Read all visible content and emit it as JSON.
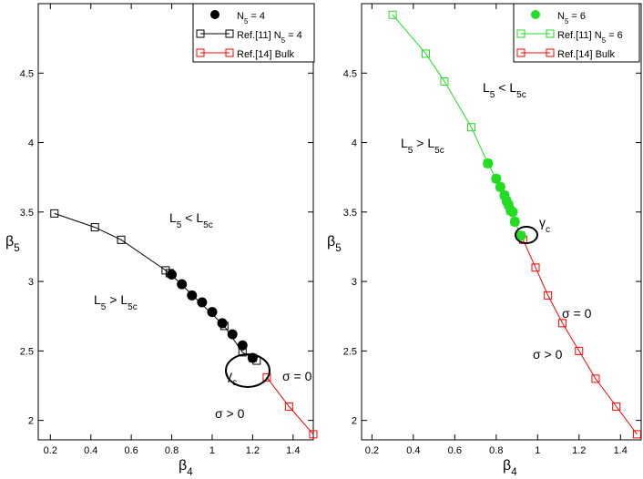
{
  "chart_data": [
    {
      "type": "scatter",
      "x_label": [
        "β",
        "4"
      ],
      "y_label": [
        "β",
        "5"
      ],
      "xlim": [
        0.14,
        1.5
      ],
      "ylim": [
        1.86,
        5.0
      ],
      "xticks": [
        0.2,
        0.4,
        0.6,
        0.8,
        1,
        1.2,
        1.4
      ],
      "yticks": [
        2,
        2.5,
        3,
        3.5,
        4,
        4.5
      ],
      "legend": "upper right",
      "series": [
        {
          "name": [
            "N",
            "5",
            " = 4"
          ],
          "color": "#000000",
          "marker": "circle",
          "line": false,
          "x": [
            0.8,
            0.85,
            0.9,
            0.95,
            1.0,
            1.05,
            1.1,
            1.15,
            1.2
          ],
          "values": [
            3.05,
            2.98,
            2.9,
            2.85,
            2.78,
            2.7,
            2.62,
            2.54,
            2.45
          ]
        },
        {
          "name": [
            "Ref.[11] N",
            "5",
            " = 4"
          ],
          "color": "#000000",
          "marker": "square",
          "line": true,
          "x": [
            0.22,
            0.42,
            0.55,
            0.77,
            0.79,
            1.06,
            1.15,
            1.2,
            1.22
          ],
          "values": [
            3.49,
            3.39,
            3.3,
            3.08,
            3.06,
            2.68,
            2.49,
            2.45,
            2.43
          ]
        },
        {
          "name": [
            "Ref.[14] Bulk"
          ],
          "color": "#ff0000",
          "marker": "square",
          "line": true,
          "x": [
            1.27,
            1.38,
            1.5
          ],
          "values": [
            2.31,
            2.1,
            1.9
          ]
        }
      ],
      "annotations": [
        [
          "L",
          "5",
          " < L",
          "5c"
        ],
        [
          "L",
          "5",
          " > L",
          "5c"
        ],
        [
          "γ",
          "c"
        ],
        [
          "σ = 0"
        ],
        [
          "σ > 0"
        ]
      ]
    },
    {
      "type": "scatter",
      "x_label": [
        "β",
        "4"
      ],
      "y_label": [
        "β",
        "5"
      ],
      "xlim": [
        0.15,
        1.5
      ],
      "ylim": [
        1.86,
        5.0
      ],
      "xticks": [
        0.2,
        0.4,
        0.6,
        0.8,
        1,
        1.2,
        1.4
      ],
      "yticks": [
        2,
        2.5,
        3,
        3.5,
        4,
        4.5
      ],
      "legend": "upper right",
      "series": [
        {
          "name": [
            "N",
            "5",
            " = 6"
          ],
          "color": "#22dd22",
          "marker": "circle",
          "line": false,
          "x": [
            0.76,
            0.8,
            0.82,
            0.84,
            0.85,
            0.86,
            0.87,
            0.88,
            0.89,
            0.92
          ],
          "values": [
            3.85,
            3.74,
            3.68,
            3.62,
            3.58,
            3.55,
            3.51,
            3.5,
            3.43,
            3.33
          ]
        },
        {
          "name": [
            "Ref.[11] N",
            "5",
            " = 6"
          ],
          "color": "#22dd22",
          "marker": "square",
          "line": true,
          "x": [
            0.3,
            0.46,
            0.55,
            0.68,
            0.76,
            0.8,
            0.82,
            0.84,
            0.85,
            0.86,
            0.87,
            0.89,
            0.92
          ],
          "values": [
            4.92,
            4.64,
            4.44,
            4.11,
            3.85,
            3.74,
            3.68,
            3.62,
            3.58,
            3.55,
            3.51,
            3.43,
            3.33
          ]
        },
        {
          "name": [
            "Ref.[14] Bulk"
          ],
          "color": "#ff0000",
          "marker": "square",
          "line": true,
          "x": [
            0.93,
            0.99,
            1.05,
            1.12,
            1.2,
            1.28,
            1.38,
            1.48
          ],
          "values": [
            3.3,
            3.1,
            2.9,
            2.7,
            2.5,
            2.3,
            2.1,
            1.9
          ]
        }
      ],
      "annotations": [
        [
          "L",
          "5",
          " < L",
          "5c"
        ],
        [
          "L",
          "5",
          " > L",
          "5c"
        ],
        [
          "γ",
          "c"
        ],
        [
          "σ = 0"
        ],
        [
          "σ > 0"
        ]
      ]
    }
  ]
}
